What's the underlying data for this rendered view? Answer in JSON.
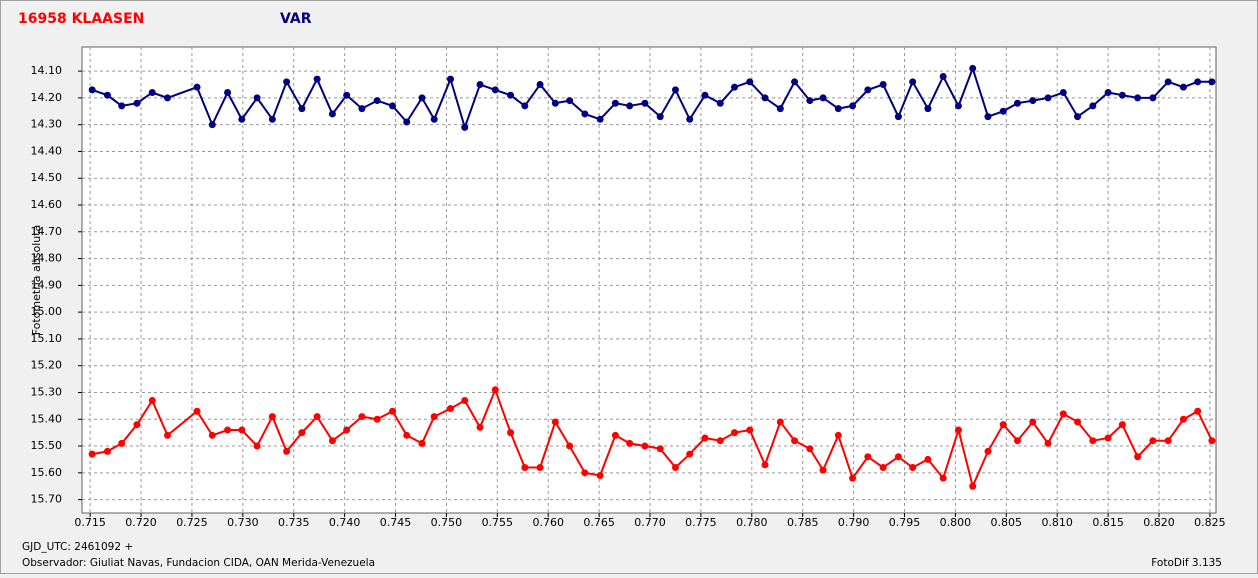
{
  "chart_data": {
    "type": "line",
    "y_label": "Fotometria absoluta",
    "x": [
      0.7152,
      0.7167,
      0.7181,
      0.7196,
      0.7211,
      0.7226,
      0.7255,
      0.727,
      0.7285,
      0.7299,
      0.7314,
      0.7329,
      0.7343,
      0.7358,
      0.7373,
      0.7388,
      0.7402,
      0.7417,
      0.7432,
      0.7447,
      0.7461,
      0.7476,
      0.7488,
      0.7504,
      0.7518,
      0.7533,
      0.7548,
      0.7563,
      0.7577,
      0.7592,
      0.7607,
      0.7621,
      0.7636,
      0.7651,
      0.7666,
      0.768,
      0.7695,
      0.771,
      0.7725,
      0.7739,
      0.7754,
      0.7769,
      0.7783,
      0.7798,
      0.7813,
      0.7828,
      0.7842,
      0.7857,
      0.787,
      0.7885,
      0.7899,
      0.7914,
      0.7929,
      0.7944,
      0.7958,
      0.7973,
      0.7988,
      0.8003,
      0.8017,
      0.8032,
      0.8047,
      0.8061,
      0.8076,
      0.8091,
      0.8106,
      0.812,
      0.8135,
      0.815,
      0.8164,
      0.8179,
      0.8194,
      0.8209,
      0.8224,
      0.8238,
      0.8252
    ],
    "series": [
      {
        "name": "16958 KLAASEN",
        "color": "#ff0000",
        "values": [
          15.53,
          15.52,
          15.49,
          15.42,
          15.33,
          15.46,
          15.37,
          15.46,
          15.44,
          15.44,
          15.5,
          15.39,
          15.52,
          15.45,
          15.39,
          15.48,
          15.44,
          15.39,
          15.4,
          15.37,
          15.46,
          15.49,
          15.39,
          15.36,
          15.33,
          15.43,
          15.29,
          15.45,
          15.58,
          15.58,
          15.41,
          15.5,
          15.6,
          15.61,
          15.46,
          15.49,
          15.5,
          15.51,
          15.58,
          15.53,
          15.47,
          15.48,
          15.45,
          15.44,
          15.57,
          15.41,
          15.48,
          15.51,
          15.59,
          15.46,
          15.62,
          15.54,
          15.58,
          15.54,
          15.58,
          15.55,
          15.62,
          15.44,
          15.65,
          15.52,
          15.42,
          15.48,
          15.41,
          15.49,
          15.38,
          15.41,
          15.48,
          15.47,
          15.42,
          15.54,
          15.48,
          15.48,
          15.4,
          15.37,
          15.48
        ]
      },
      {
        "name": "VAR",
        "color": "#000080",
        "values": [
          14.17,
          14.19,
          14.23,
          14.22,
          14.18,
          14.2,
          14.16,
          14.3,
          14.18,
          14.28,
          14.2,
          14.28,
          14.14,
          14.24,
          14.13,
          14.26,
          14.19,
          14.24,
          14.21,
          14.23,
          14.29,
          14.2,
          14.28,
          14.13,
          14.31,
          14.15,
          14.17,
          14.19,
          14.23,
          14.15,
          14.22,
          14.21,
          14.26,
          14.28,
          14.22,
          14.23,
          14.22,
          14.27,
          14.17,
          14.28,
          14.19,
          14.22,
          14.16,
          14.14,
          14.2,
          14.24,
          14.14,
          14.21,
          14.2,
          14.24,
          14.23,
          14.17,
          14.15,
          14.27,
          14.14,
          14.24,
          14.12,
          14.23,
          14.09,
          14.27,
          14.25,
          14.22,
          14.21,
          14.2,
          14.18,
          14.27,
          14.23,
          14.18,
          14.19,
          14.2,
          14.2,
          14.14,
          14.16,
          14.14,
          14.14
        ]
      }
    ],
    "xlim": [
      0.7142,
      0.8256
    ],
    "ylim": [
      14.01,
      15.75
    ],
    "y_inverted": true,
    "grid": true,
    "xticks": [
      0.715,
      {
        "value": 0.72,
        "label": "0.720"
      },
      0.725,
      {
        "value": 0.73,
        "label": "0.730"
      },
      0.735,
      {
        "value": 0.74,
        "label": "0.740"
      },
      0.745,
      {
        "value": 0.75,
        "label": "0.750"
      },
      0.755,
      {
        "value": 0.76,
        "label": "0.760"
      },
      0.765,
      {
        "value": 0.77,
        "label": "0.770"
      },
      0.775,
      {
        "value": 0.78,
        "label": "0.780"
      },
      0.785,
      {
        "value": 0.79,
        "label": "0.790"
      },
      0.795,
      {
        "value": 0.8,
        "label": "0.800"
      },
      0.805,
      {
        "value": 0.81,
        "label": "0.810"
      },
      0.815,
      {
        "value": 0.82,
        "label": "0.820"
      },
      0.825
    ],
    "yticks": [
      {
        "value": 14.1,
        "label": "14.10"
      },
      {
        "value": 14.2,
        "label": "14.20"
      },
      {
        "value": 14.3,
        "label": "14.30"
      },
      {
        "value": 14.4,
        "label": "14.40"
      },
      {
        "value": 14.5,
        "label": "14.50"
      },
      {
        "value": 14.6,
        "label": "14.60"
      },
      {
        "value": 14.7,
        "label": "14.70"
      },
      {
        "value": 14.8,
        "label": "14.80"
      },
      {
        "value": 14.9,
        "label": "14.90"
      },
      {
        "value": 15.0,
        "label": "15.00"
      },
      {
        "value": 15.1,
        "label": "15.10"
      },
      {
        "value": 15.2,
        "label": "15.20"
      },
      {
        "value": 15.3,
        "label": "15.30"
      },
      {
        "value": 15.4,
        "label": "15.40"
      },
      {
        "value": 15.5,
        "label": "15.50"
      },
      {
        "value": 15.6,
        "label": "15.60"
      },
      {
        "value": 15.7,
        "label": "15.70"
      }
    ]
  },
  "footer": {
    "epoch": "GJD_UTC: 2461092 +",
    "observer": "Observador: Giuliat Navas, Fundacion CIDA, OAN Merida-Venezuela",
    "software": "FotoDif 3.135"
  }
}
